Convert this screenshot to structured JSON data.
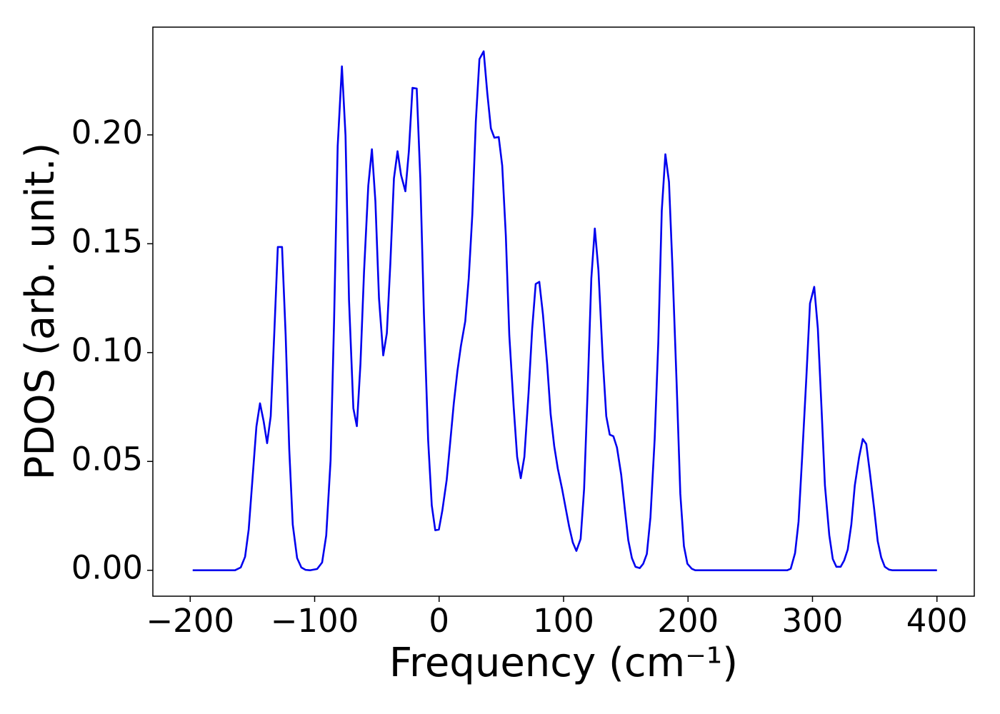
{
  "chart_data": {
    "type": "line",
    "xlabel": "Frequency (cm⁻¹)",
    "ylabel": "PDOS (arb. unit.)",
    "x": [
      -198,
      -164,
      -159.4,
      -155.9,
      -153,
      -146.8,
      -143.9,
      -141,
      -138.2,
      -135.3,
      -132.5,
      -129.6,
      -126.2,
      -123.3,
      -120.4,
      -117.6,
      -114.1,
      -110.7,
      -107.3,
      -103.8,
      -98,
      -94,
      -90.7,
      -87.2,
      -84.4,
      -81.5,
      -78.1,
      -75.2,
      -72.4,
      -68.9,
      -66.1,
      -63.2,
      -60.3,
      -56.9,
      -54,
      -51.2,
      -48.3,
      -44.9,
      -42,
      -39.2,
      -36.3,
      -33.4,
      -30.6,
      -27.1,
      -24.3,
      -21.4,
      -18,
      -15.1,
      -12.2,
      -8.8,
      -5.9,
      -3.1,
      -0.2,
      2.6,
      6.1,
      8.9,
      11.8,
      14.7,
      17.5,
      21,
      23.8,
      26.7,
      29.5,
      32.4,
      35.8,
      38.7,
      41.6,
      44.4,
      47.9,
      50.7,
      53.6,
      56.4,
      59.9,
      62.7,
      65.6,
      68.5,
      71.9,
      74.8,
      77.6,
      80.5,
      83.4,
      86.8,
      89.6,
      92.5,
      95.4,
      98.8,
      101.7,
      104.5,
      107.4,
      110.3,
      113.7,
      116.5,
      119.4,
      122.3,
      125.1,
      128,
      131.4,
      134.3,
      137.1,
      140,
      142.9,
      146.3,
      149.2,
      152,
      154.9,
      157.8,
      161.2,
      164,
      166.9,
      169.8,
      173.2,
      176.1,
      178.9,
      181.8,
      184.7,
      187.5,
      190.9,
      193.8,
      196.7,
      199.5,
      203,
      205.8,
      279.7,
      282.5,
      286,
      288.8,
      291.7,
      295.1,
      298,
      301.4,
      304.3,
      307.2,
      310,
      313.5,
      316.3,
      319.2,
      322.6,
      325.5,
      328.3,
      331.2,
      334,
      337.5,
      340.4,
      343.2,
      346.1,
      349.5,
      352.4,
      355.2,
      358.1,
      361.5,
      364.4,
      400
    ],
    "series": [
      {
        "color": "#0000ee",
        "values": [
          0,
          0,
          0.0013,
          0.0062,
          0.0187,
          0.066,
          0.0767,
          0.0685,
          0.0584,
          0.0708,
          0.108,
          0.1485,
          0.1485,
          0.108,
          0.0554,
          0.021,
          0.0056,
          0.0013,
          0.0002,
          0,
          0.0006,
          0.0036,
          0.016,
          0.0505,
          0.1144,
          0.1948,
          0.2315,
          0.1997,
          0.1243,
          0.0744,
          0.0662,
          0.0948,
          0.1374,
          0.1767,
          0.1934,
          0.1695,
          0.1249,
          0.0987,
          0.1089,
          0.1407,
          0.18,
          0.1925,
          0.1816,
          0.1741,
          0.1925,
          0.2216,
          0.2213,
          0.18,
          0.1177,
          0.0597,
          0.0298,
          0.0184,
          0.0187,
          0.0275,
          0.0416,
          0.0587,
          0.0767,
          0.0915,
          0.103,
          0.1144,
          0.1341,
          0.1636,
          0.2062,
          0.2348,
          0.2384,
          0.2193,
          0.203,
          0.1987,
          0.199,
          0.1859,
          0.1538,
          0.1079,
          0.0751,
          0.0521,
          0.0423,
          0.0521,
          0.0816,
          0.1111,
          0.1315,
          0.1325,
          0.1177,
          0.0948,
          0.0718,
          0.057,
          0.0466,
          0.0374,
          0.0285,
          0.02,
          0.0128,
          0.0089,
          0.0144,
          0.0374,
          0.0833,
          0.1341,
          0.157,
          0.138,
          0.098,
          0.0708,
          0.0623,
          0.0616,
          0.0564,
          0.0439,
          0.0282,
          0.0138,
          0.0056,
          0.0016,
          0.001,
          0.003,
          0.0075,
          0.0243,
          0.0603,
          0.1046,
          0.1652,
          0.1911,
          0.1784,
          0.139,
          0.0849,
          0.0351,
          0.0111,
          0.003,
          0.0007,
          0,
          0,
          0.0007,
          0.0079,
          0.0223,
          0.0521,
          0.0889,
          0.1226,
          0.1302,
          0.1111,
          0.0751,
          0.039,
          0.0161,
          0.0052,
          0.0016,
          0.0016,
          0.0046,
          0.0095,
          0.021,
          0.039,
          0.0521,
          0.0603,
          0.058,
          0.0449,
          0.0285,
          0.0134,
          0.0059,
          0.0016,
          0.0003,
          0,
          0
        ]
      }
    ],
    "xlim": [
      -230,
      430
    ],
    "ylim": [
      -0.0119,
      0.2495
    ],
    "xticks": [
      {
        "value": -200,
        "label": "−200"
      },
      {
        "value": -100,
        "label": "−100"
      },
      0,
      100,
      200,
      300,
      400
    ],
    "yticks": [
      {
        "value": 0,
        "label": "0.00"
      },
      {
        "value": 0.05,
        "label": "0.05"
      },
      {
        "value": 0.1,
        "label": "0.10"
      },
      {
        "value": 0.15,
        "label": "0.15"
      },
      {
        "value": 0.2,
        "label": "0.20"
      }
    ],
    "grid": false
  }
}
